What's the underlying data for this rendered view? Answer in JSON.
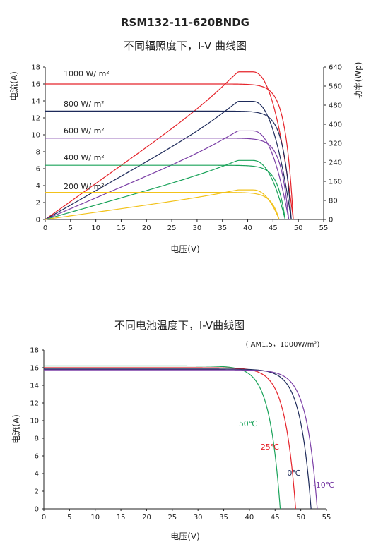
{
  "page_title": "RSM132-11-620BNDG",
  "chart_data": [
    {
      "type": "line",
      "title": "不同辐照度下，I-V 曲线图",
      "xlabel": "电压(V)",
      "ylabel": "电流(A)",
      "y2label": "功率(Wp)",
      "xlim": [
        0,
        55
      ],
      "ylim": [
        0,
        18
      ],
      "y2lim": [
        0,
        640
      ],
      "x_ticks": [
        "0",
        "5",
        "10",
        "15",
        "20",
        "25",
        "30",
        "35",
        "40",
        "45",
        "50",
        "55"
      ],
      "y_ticks": [
        "0",
        "2",
        "4",
        "6",
        "8",
        "10",
        "12",
        "14",
        "16",
        "18"
      ],
      "y2_ticks": [
        "0",
        "80",
        "160",
        "240",
        "320",
        "400",
        "480",
        "560",
        "640"
      ],
      "grid": false,
      "series": [
        {
          "name": "1000 W/ m²",
          "color": "#e5232a",
          "isc": 16.0,
          "voc": 49.0,
          "pmax": 620,
          "vmp": 41
        },
        {
          "name": "800 W/ m²",
          "color": "#1d2a5a",
          "isc": 12.8,
          "voc": 48.6,
          "pmax": 496,
          "vmp": 41
        },
        {
          "name": "600 W/ m²",
          "color": "#7b3fa6",
          "isc": 9.6,
          "voc": 48.1,
          "pmax": 372,
          "vmp": 41
        },
        {
          "name": "400 W/ m²",
          "color": "#1aa35a",
          "isc": 6.4,
          "voc": 47.4,
          "pmax": 248,
          "vmp": 41
        },
        {
          "name": "200 W/ m²",
          "color": "#f2c21a",
          "isc": 3.2,
          "voc": 46.2,
          "pmax": 124,
          "vmp": 41
        }
      ]
    },
    {
      "type": "line",
      "title": "不同电池温度下，I-V曲线图",
      "annotation": "( AM1.5，1000W/m²)",
      "xlabel": "电压(V)",
      "ylabel": "电流(A)",
      "xlim": [
        0,
        55
      ],
      "ylim": [
        0,
        18
      ],
      "x_ticks": [
        "0",
        "5",
        "10",
        "15",
        "20",
        "25",
        "30",
        "35",
        "40",
        "45",
        "50",
        "55"
      ],
      "y_ticks": [
        "0",
        "2",
        "4",
        "6",
        "8",
        "10",
        "12",
        "14",
        "16",
        "18"
      ],
      "grid": false,
      "series": [
        {
          "name": "50℃",
          "color": "#1aa35a",
          "isc": 16.2,
          "voc": 46.0
        },
        {
          "name": "25℃",
          "color": "#e5232a",
          "isc": 16.0,
          "voc": 49.0
        },
        {
          "name": "0℃",
          "color": "#1d2a5a",
          "isc": 15.85,
          "voc": 52.0
        },
        {
          "name": "-10℃",
          "color": "#7b3fa6",
          "isc": 15.75,
          "voc": 53.2
        }
      ]
    }
  ]
}
